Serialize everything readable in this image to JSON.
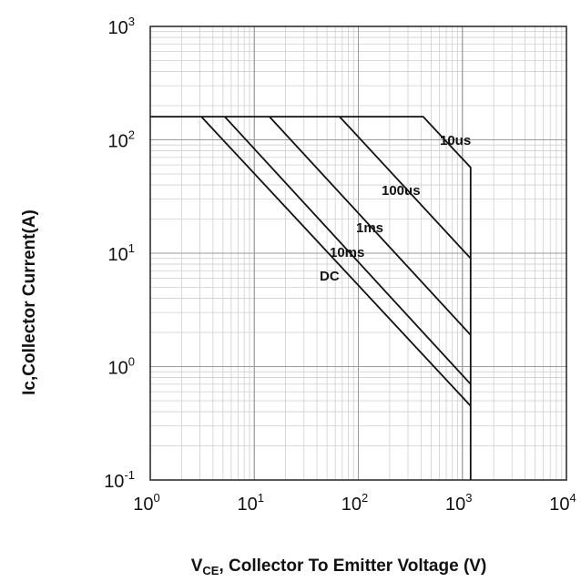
{
  "chart_data": {
    "type": "line",
    "title": "",
    "xlabel": "Collector To Emitter Voltage (V)",
    "xlabel_prefix": "V",
    "xlabel_subscript": "CE",
    "ylabel": "Ic,Collector Current(A)",
    "xscale": "log",
    "yscale": "log",
    "xlim": [
      1,
      10000
    ],
    "ylim": [
      0.1,
      1000
    ],
    "grid": true,
    "xticks": [
      {
        "base": "10",
        "exp": "0"
      },
      {
        "base": "10",
        "exp": "1"
      },
      {
        "base": "10",
        "exp": "2"
      },
      {
        "base": "10",
        "exp": "3"
      },
      {
        "base": "10",
        "exp": "4"
      }
    ],
    "yticks": [
      {
        "base": "10",
        "exp": "-1"
      },
      {
        "base": "10",
        "exp": "0"
      },
      {
        "base": "10",
        "exp": "1"
      },
      {
        "base": "10",
        "exp": "2"
      },
      {
        "base": "10",
        "exp": "3"
      }
    ],
    "series": [
      {
        "name": "10us",
        "x": [
          1,
          420,
          1200,
          1200
        ],
        "y": [
          160,
          160,
          57,
          0.1
        ]
      },
      {
        "name": "100us",
        "x": [
          66,
          1200
        ],
        "y": [
          160,
          9
        ]
      },
      {
        "name": "1ms",
        "x": [
          14,
          1200
        ],
        "y": [
          160,
          1.9
        ]
      },
      {
        "name": "10ms",
        "x": [
          5.2,
          1200
        ],
        "y": [
          160,
          0.7
        ]
      },
      {
        "name": "DC",
        "x": [
          3.1,
          1200
        ],
        "y": [
          160,
          0.45
        ]
      }
    ]
  }
}
